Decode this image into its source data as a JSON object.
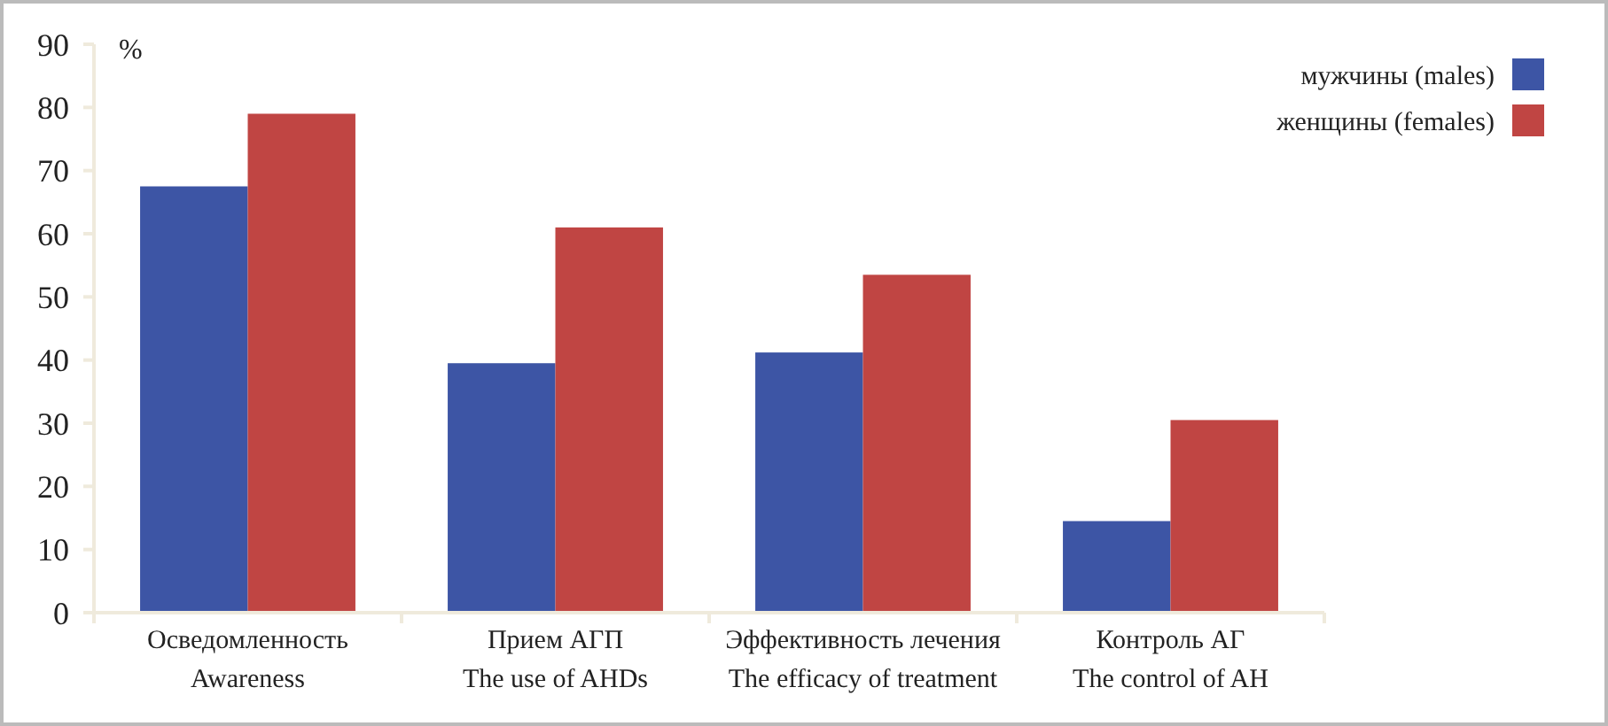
{
  "chart_data": {
    "type": "bar",
    "ylabel": "%",
    "categories": [
      "Осведомленность\nAwareness",
      "Прием АГП\nThe use of AHDs",
      "Эффективность лечения\nThe efficacy of treatment",
      "Контроль АГ\nThe control of AH"
    ],
    "series": [
      {
        "name": "мужчины (males)",
        "color": "#3d55a5",
        "values": [
          67.5,
          39.5,
          41.2,
          14.5
        ]
      },
      {
        "name": "женщины (females)",
        "color": "#c04543",
        "values": [
          79,
          61,
          53.5,
          30.5
        ]
      }
    ],
    "ylim": [
      0,
      90
    ],
    "yticks": [
      0,
      10,
      20,
      30,
      40,
      50,
      60,
      70,
      80,
      90
    ],
    "grid": false,
    "legend": "top right"
  }
}
